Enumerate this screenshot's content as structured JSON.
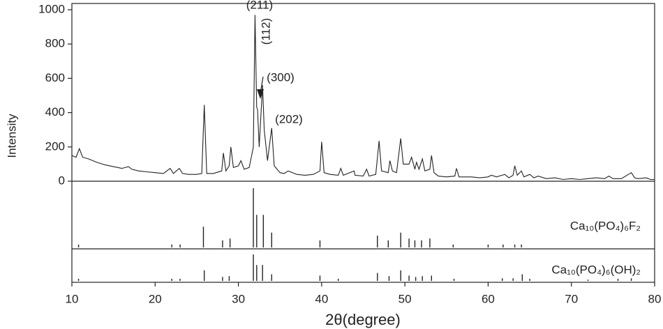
{
  "chart_data": {
    "type": "line",
    "color": "#222222",
    "x_label": "2θ(degree)",
    "y_label": "Intensity",
    "xlim": [
      10,
      80
    ],
    "xticks": [
      10,
      20,
      30,
      40,
      50,
      60,
      70,
      80
    ],
    "ylim": [
      0,
      1000
    ],
    "yticks": [
      0,
      200,
      400,
      600,
      800,
      1000
    ],
    "annotations": [
      "(211)",
      "(112)",
      "(300)",
      "(202)"
    ],
    "x": [
      10,
      10.5,
      10.9,
      11.3,
      12,
      13,
      14,
      15,
      16,
      16.8,
      17.2,
      18,
      19,
      20,
      21,
      21.8,
      22.2,
      22.9,
      23.3,
      24,
      25,
      25.6,
      25.9,
      26.2,
      27,
      28,
      28.2,
      28.5,
      28.9,
      29.1,
      29.4,
      30,
      30.3,
      30.7,
      31.3,
      31.8,
      32,
      32.2,
      32.3,
      32.5,
      32.9,
      33.1,
      33.5,
      34,
      34.3,
      35,
      35.5,
      36,
      37,
      38,
      39,
      39.8,
      40,
      40.3,
      41,
      42,
      42.3,
      42.6,
      43.9,
      44,
      45,
      45.4,
      45.7,
      46.5,
      46.9,
      47.2,
      48,
      48.2,
      48.5,
      49,
      49.5,
      49.8,
      50.5,
      50.8,
      51.2,
      51.4,
      51.7,
      52.1,
      52.4,
      53,
      53.2,
      53.5,
      54,
      55,
      56,
      56.2,
      56.5,
      57,
      58,
      59,
      60,
      60.4,
      61,
      62,
      62.5,
      63,
      63.2,
      63.5,
      64,
      64.3,
      65,
      65.5,
      66,
      67,
      68,
      69,
      70,
      71,
      72,
      73,
      74,
      74.5,
      75,
      76,
      77.2,
      77.6,
      78,
      79,
      79.5,
      80
    ],
    "values": [
      150,
      140,
      190,
      140,
      130,
      110,
      95,
      85,
      75,
      85,
      70,
      60,
      55,
      50,
      45,
      75,
      45,
      75,
      45,
      40,
      40,
      45,
      445,
      45,
      45,
      60,
      165,
      60,
      90,
      200,
      80,
      90,
      120,
      70,
      80,
      200,
      970,
      430,
      420,
      200,
      560,
      300,
      120,
      310,
      90,
      50,
      45,
      60,
      40,
      35,
      40,
      60,
      230,
      50,
      40,
      35,
      75,
      35,
      60,
      35,
      30,
      70,
      30,
      40,
      235,
      60,
      50,
      120,
      60,
      50,
      250,
      100,
      100,
      140,
      70,
      110,
      70,
      130,
      60,
      70,
      150,
      50,
      30,
      25,
      30,
      75,
      25,
      25,
      25,
      20,
      25,
      35,
      25,
      40,
      20,
      35,
      90,
      35,
      60,
      25,
      40,
      20,
      30,
      15,
      20,
      10,
      15,
      10,
      15,
      20,
      15,
      30,
      15,
      15,
      50,
      20,
      15,
      20,
      10,
      10
    ],
    "references": [
      {
        "name": "Ca₁₀(PO₄)₆F₂",
        "x": [
          10.8,
          22,
          23,
          25.8,
          28.1,
          29,
          31.8,
          32.2,
          33,
          34,
          39.8,
          46.7,
          48,
          49.5,
          50.5,
          51.2,
          52,
          53,
          55.8,
          60,
          61.8,
          63.2,
          64
        ],
        "values": [
          5,
          5,
          5,
          35,
          12,
          15,
          100,
          55,
          55,
          25,
          12,
          20,
          12,
          25,
          15,
          12,
          12,
          15,
          5,
          5,
          5,
          5,
          5
        ]
      },
      {
        "name": "Ca₁₀(PO₄)₆(OH)₂",
        "x": [
          10.8,
          22,
          23,
          25.9,
          28.1,
          28.9,
          31.8,
          32.2,
          32.9,
          34,
          39.8,
          42,
          46.7,
          48.1,
          49.5,
          50.5,
          51.3,
          52.1,
          53.2,
          55.9,
          61.7,
          63,
          64.1,
          65,
          72,
          75.6,
          77.2
        ],
        "values": [
          8,
          8,
          8,
          40,
          15,
          18,
          100,
          60,
          60,
          25,
          20,
          8,
          30,
          18,
          40,
          20,
          15,
          18,
          20,
          8,
          10,
          10,
          25,
          8,
          5,
          8,
          10
        ]
      }
    ]
  }
}
